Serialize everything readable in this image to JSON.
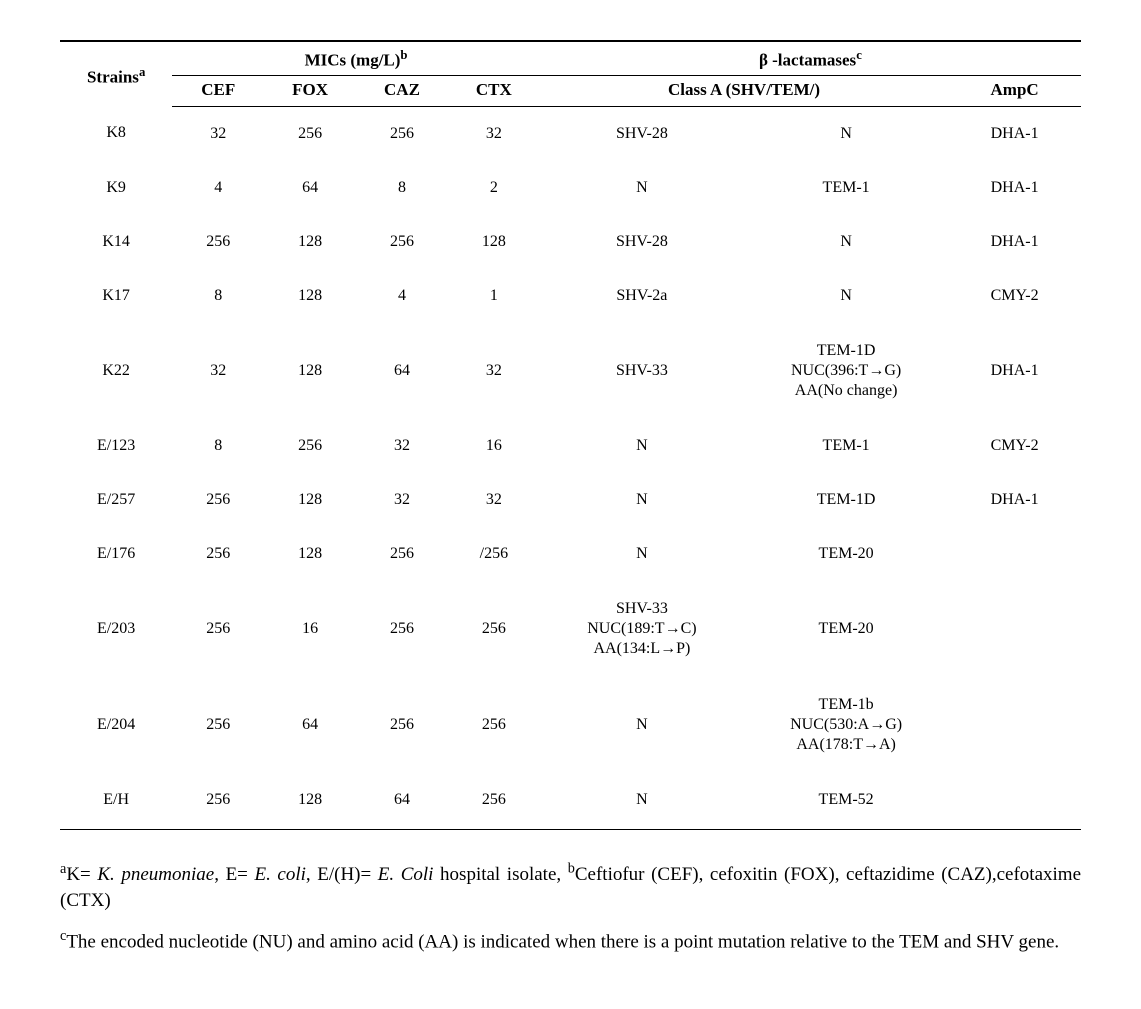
{
  "table": {
    "headers": {
      "strains": "Strains",
      "strains_sup": "a",
      "mics": "MICs (mg/L)",
      "mics_sup": "b",
      "beta": "β -lactamases",
      "beta_sup": "c",
      "cef": "CEF",
      "fox": "FOX",
      "caz": "CAZ",
      "ctx": "CTX",
      "classA": "Class A (SHV/TEM/)",
      "ampc": "AmpC"
    },
    "rows": [
      {
        "strain": "K8",
        "cef": "32",
        "fox": "256",
        "caz": "256",
        "ctx": "32",
        "shv": "SHV-28",
        "tem": "N",
        "ampc": "DHA-1"
      },
      {
        "strain": "K9",
        "cef": "4",
        "fox": "64",
        "caz": "8",
        "ctx": "2",
        "shv": "N",
        "tem": "TEM-1",
        "ampc": "DHA-1"
      },
      {
        "strain": "K14",
        "cef": "256",
        "fox": "128",
        "caz": "256",
        "ctx": "128",
        "shv": "SHV-28",
        "tem": "N",
        "ampc": "DHA-1"
      },
      {
        "strain": "K17",
        "cef": "8",
        "fox": "128",
        "caz": "4",
        "ctx": "1",
        "shv": "SHV-2a",
        "tem": "N",
        "ampc": "CMY-2"
      },
      {
        "strain": "K22",
        "cef": "32",
        "fox": "128",
        "caz": "64",
        "ctx": "32",
        "shv": "SHV-33",
        "tem": "TEM-1D\nNUC(396:T→G)\nAA(No change)",
        "ampc": "DHA-1"
      },
      {
        "strain": "E/123",
        "cef": "8",
        "fox": "256",
        "caz": "32",
        "ctx": "16",
        "shv": "N",
        "tem": "TEM-1",
        "ampc": "CMY-2"
      },
      {
        "strain": "E/257",
        "cef": "256",
        "fox": "128",
        "caz": "32",
        "ctx": "32",
        "shv": "N",
        "tem": "TEM-1D",
        "ampc": "DHA-1"
      },
      {
        "strain": "E/176",
        "cef": "256",
        "fox": "128",
        "caz": "256",
        "ctx": "/256",
        "shv": "N",
        "tem": "TEM-20",
        "ampc": ""
      },
      {
        "strain": "E/203",
        "cef": "256",
        "fox": "16",
        "caz": "256",
        "ctx": "256",
        "shv": "SHV-33\nNUC(189:T→C)\nAA(134:L→P)",
        "tem": "TEM-20",
        "ampc": ""
      },
      {
        "strain": "E/204",
        "cef": "256",
        "fox": "64",
        "caz": "256",
        "ctx": "256",
        "shv": "N",
        "tem": "TEM-1b\nNUC(530:A→G)\nAA(178:T→A)",
        "ampc": ""
      },
      {
        "strain": "E/H",
        "cef": "256",
        "fox": "128",
        "caz": "64",
        "ctx": "256",
        "shv": "N",
        "tem": "TEM-52",
        "ampc": ""
      }
    ]
  },
  "footnotes": {
    "a_sup": "a",
    "a_html": "K= <span class='ital'>K. pneumoniae</span>, E= <span class='ital'>E. coli</span>, E/(H)= <span class='ital'>E. Coli</span> hospital isolate, <sup>b</sup>Ceftiofur (CEF), cefoxitin (FOX), ceftazidime (CAZ),cefotaxime (CTX)",
    "c_sup": "c",
    "c_text": "The encoded nucleotide (NU) and amino acid (AA) is indicated when there is a point mutation relative to the TEM and SHV gene."
  },
  "style": {
    "col_widths": [
      "11%",
      "9%",
      "9%",
      "9%",
      "9%",
      "20%",
      "20%",
      "13%"
    ],
    "font_color": "#000000",
    "bg_color": "#ffffff"
  }
}
